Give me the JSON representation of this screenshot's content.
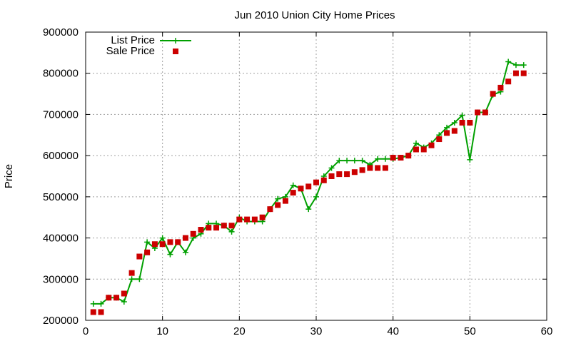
{
  "chart_data": {
    "type": "line",
    "title": "Jun 2010 Union City Home Prices",
    "xlabel": "",
    "ylabel": "Price",
    "xlim": [
      0,
      60
    ],
    "ylim": [
      200000,
      900000
    ],
    "xticks": [
      0,
      10,
      20,
      30,
      40,
      50,
      60
    ],
    "yticks": [
      200000,
      300000,
      400000,
      500000,
      600000,
      700000,
      800000,
      900000
    ],
    "grid": true,
    "legend_position": "top-left",
    "x": [
      1,
      2,
      3,
      4,
      5,
      6,
      7,
      8,
      9,
      10,
      11,
      12,
      13,
      14,
      15,
      16,
      17,
      18,
      19,
      20,
      21,
      22,
      23,
      24,
      25,
      26,
      27,
      28,
      29,
      30,
      31,
      32,
      33,
      34,
      35,
      36,
      37,
      38,
      39,
      40,
      41,
      42,
      43,
      44,
      45,
      46,
      47,
      48,
      49,
      50,
      51,
      52,
      53,
      54,
      55,
      56,
      57
    ],
    "series": [
      {
        "name": "List Price",
        "style": "line+cross",
        "color": "#00a000",
        "values": [
          240000,
          240000,
          255000,
          255000,
          245000,
          300000,
          300000,
          390000,
          375000,
          400000,
          360000,
          390000,
          365000,
          400000,
          410000,
          435000,
          435000,
          430000,
          415000,
          450000,
          440000,
          440000,
          440000,
          470000,
          495000,
          500000,
          528000,
          520000,
          470000,
          500000,
          550000,
          570000,
          588000,
          588000,
          588000,
          588000,
          578000,
          592000,
          592000,
          592000,
          595000,
          600000,
          630000,
          620000,
          630000,
          650000,
          668000,
          680000,
          698000,
          590000,
          705000,
          705000,
          748000,
          755000,
          828000,
          820000,
          820000
        ]
      },
      {
        "name": "Sale Price",
        "style": "square",
        "color": "#cc0000",
        "values": [
          220000,
          220000,
          255000,
          255000,
          265000,
          315000,
          355000,
          365000,
          385000,
          385000,
          390000,
          390000,
          400000,
          410000,
          420000,
          425000,
          425000,
          430000,
          430000,
          445000,
          445000,
          445000,
          450000,
          470000,
          480000,
          490000,
          510000,
          520000,
          525000,
          535000,
          540000,
          550000,
          555000,
          555000,
          560000,
          565000,
          570000,
          570000,
          570000,
          595000,
          595000,
          600000,
          615000,
          615000,
          625000,
          640000,
          655000,
          660000,
          680000,
          680000,
          705000,
          705000,
          750000,
          765000,
          780000,
          800000,
          800000
        ]
      }
    ]
  }
}
